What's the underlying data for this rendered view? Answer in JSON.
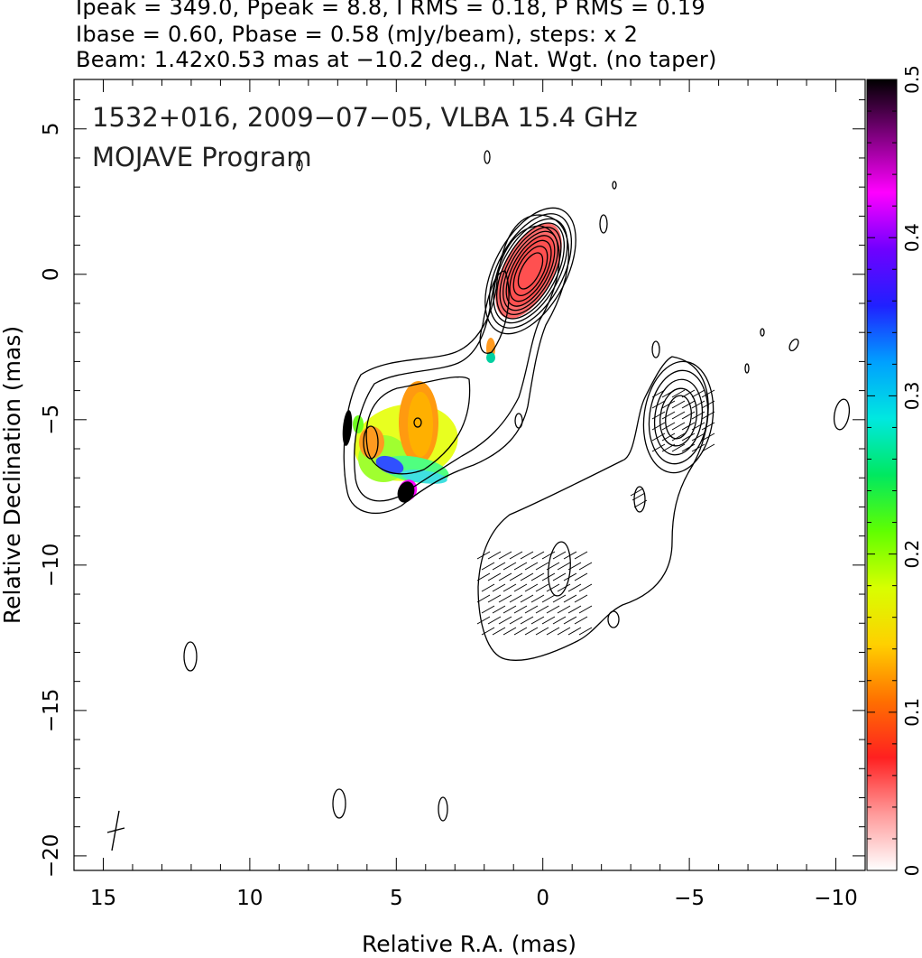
{
  "header": {
    "line1": "Ipeak = 349.0, Ppeak = 8.8, I RMS = 0.18, P RMS = 0.19",
    "line2": "Ibase = 0.60, Pbase = 0.58 (mJy/beam), steps: x 2",
    "line3": "Beam: 1.42x0.53 mas at −10.2 deg., Nat. Wgt. (no taper)"
  },
  "chart_data": {
    "type": "heatmap",
    "title": "1532+016, 2009−07−05, VLBA 15.4 GHz",
    "subtitle": "MOJAVE Program",
    "xlabel": "Relative R.A. (mas)",
    "ylabel": "Relative Declination (mas)",
    "xlim": [
      16,
      -11
    ],
    "ylim": [
      -20.5,
      6.7
    ],
    "xticks": [
      15,
      10,
      5,
      0,
      -5,
      -10
    ],
    "xtick_labels": [
      "15",
      "10",
      "5",
      "0",
      "−5",
      "−10"
    ],
    "yticks": [
      5,
      0,
      -5,
      -10,
      -15,
      -20
    ],
    "ytick_labels": [
      "5",
      "0",
      "−5",
      "−10",
      "−15",
      "−20"
    ],
    "colorbar": {
      "min": 0,
      "max": 0.5,
      "ticks": [
        0,
        0.1,
        0.2,
        0.3,
        0.4,
        0.5
      ],
      "tick_labels": [
        "0",
        "0.1",
        "0.2",
        "0.3",
        "0.4",
        "0.5"
      ],
      "colors": [
        "#ffffff",
        "#ff9a9a",
        "#ff2020",
        "#ff7000",
        "#ffd000",
        "#d8ff00",
        "#60ff00",
        "#00e860",
        "#00e8e0",
        "#00a0ff",
        "#2020ff",
        "#7000ff",
        "#ff00ff",
        "#800080",
        "#000000"
      ]
    },
    "core_position": [
      0,
      0
    ],
    "beam": {
      "major": 1.42,
      "minor": 0.53,
      "pa_deg": -10.2
    },
    "contour_base_mJy_per_beam": 0.6,
    "contour_step_factor": 2,
    "ipeak_mJy_per_beam": 349.0,
    "ppeak_mJy_per_beam": 8.8
  }
}
